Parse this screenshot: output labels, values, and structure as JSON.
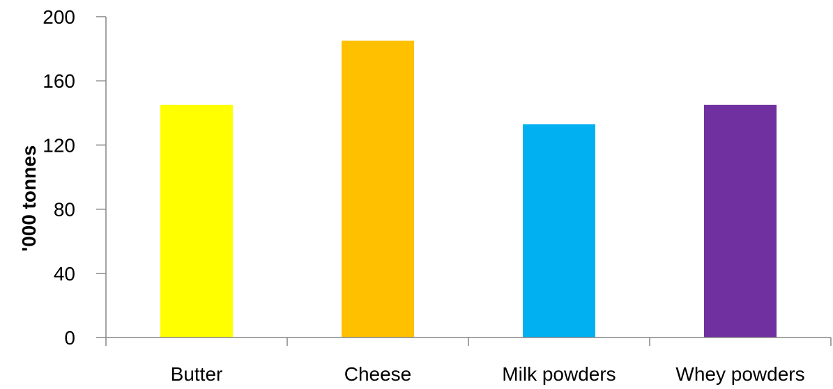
{
  "chart_data": {
    "type": "bar",
    "categories": [
      "Butter",
      "Cheese",
      "Milk powders",
      "Whey powders"
    ],
    "values": [
      145,
      185,
      133,
      145
    ],
    "colors": [
      "#FFFF00",
      "#FFC000",
      "#00B0F0",
      "#7030A0"
    ],
    "title": "",
    "xlabel": "",
    "ylabel": "'000 tonnes",
    "ylim": [
      0,
      200
    ],
    "yticks": [
      "0",
      "40",
      "80",
      "120",
      "160",
      "200"
    ],
    "grid": false,
    "legend": false
  }
}
